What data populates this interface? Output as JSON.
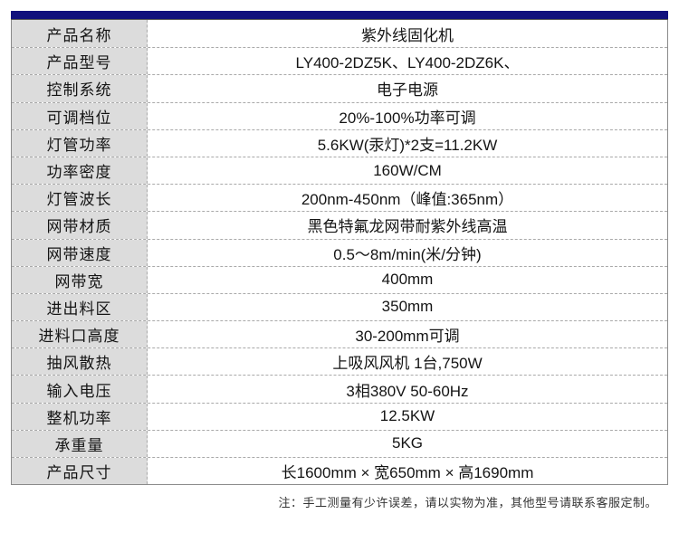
{
  "colors": {
    "accent": "#10107c",
    "label_bg": "#dcdcdc",
    "outer_border": "#8a8a8a",
    "dashed_divider": "#a9a9a9"
  },
  "table": {
    "rows": [
      {
        "label": "产品名称",
        "value": "紫外线固化机"
      },
      {
        "label": "产品型号",
        "value": "LY400-2DZ5K、LY400-2DZ6K、"
      },
      {
        "label": "控制系统",
        "value": "电子电源"
      },
      {
        "label": "可调档位",
        "value": "20%-100%功率可调"
      },
      {
        "label": "灯管功率",
        "value": "5.6KW(汞灯)*2支=11.2KW"
      },
      {
        "label": "功率密度",
        "value": "160W/CM"
      },
      {
        "label": "灯管波长",
        "value": "200nm-450nm（峰值:365nm）"
      },
      {
        "label": "网带材质",
        "value": "黑色特氟龙网带耐紫外线高温"
      },
      {
        "label": "网带速度",
        "value": "0.5～8m/min(米/分钟)"
      },
      {
        "label": "网带宽",
        "value": "400mm"
      },
      {
        "label": "进出料区",
        "value": "350mm"
      },
      {
        "label": "进料口高度",
        "value": "30-200mm可调"
      },
      {
        "label": "抽风散热",
        "value": "上吸风风机 1台,750W"
      },
      {
        "label": "输入电压",
        "value": "3相380V 50-60Hz"
      },
      {
        "label": "整机功率",
        "value": "12.5KW"
      },
      {
        "label": "承重量",
        "value": "5KG"
      },
      {
        "label": "产品尺寸",
        "value": "长1600mm × 宽650mm × 高1690mm"
      }
    ]
  },
  "note": {
    "text": "注：手工测量有少许误差，请以实物为准，其他型号请联系客服定制。"
  }
}
